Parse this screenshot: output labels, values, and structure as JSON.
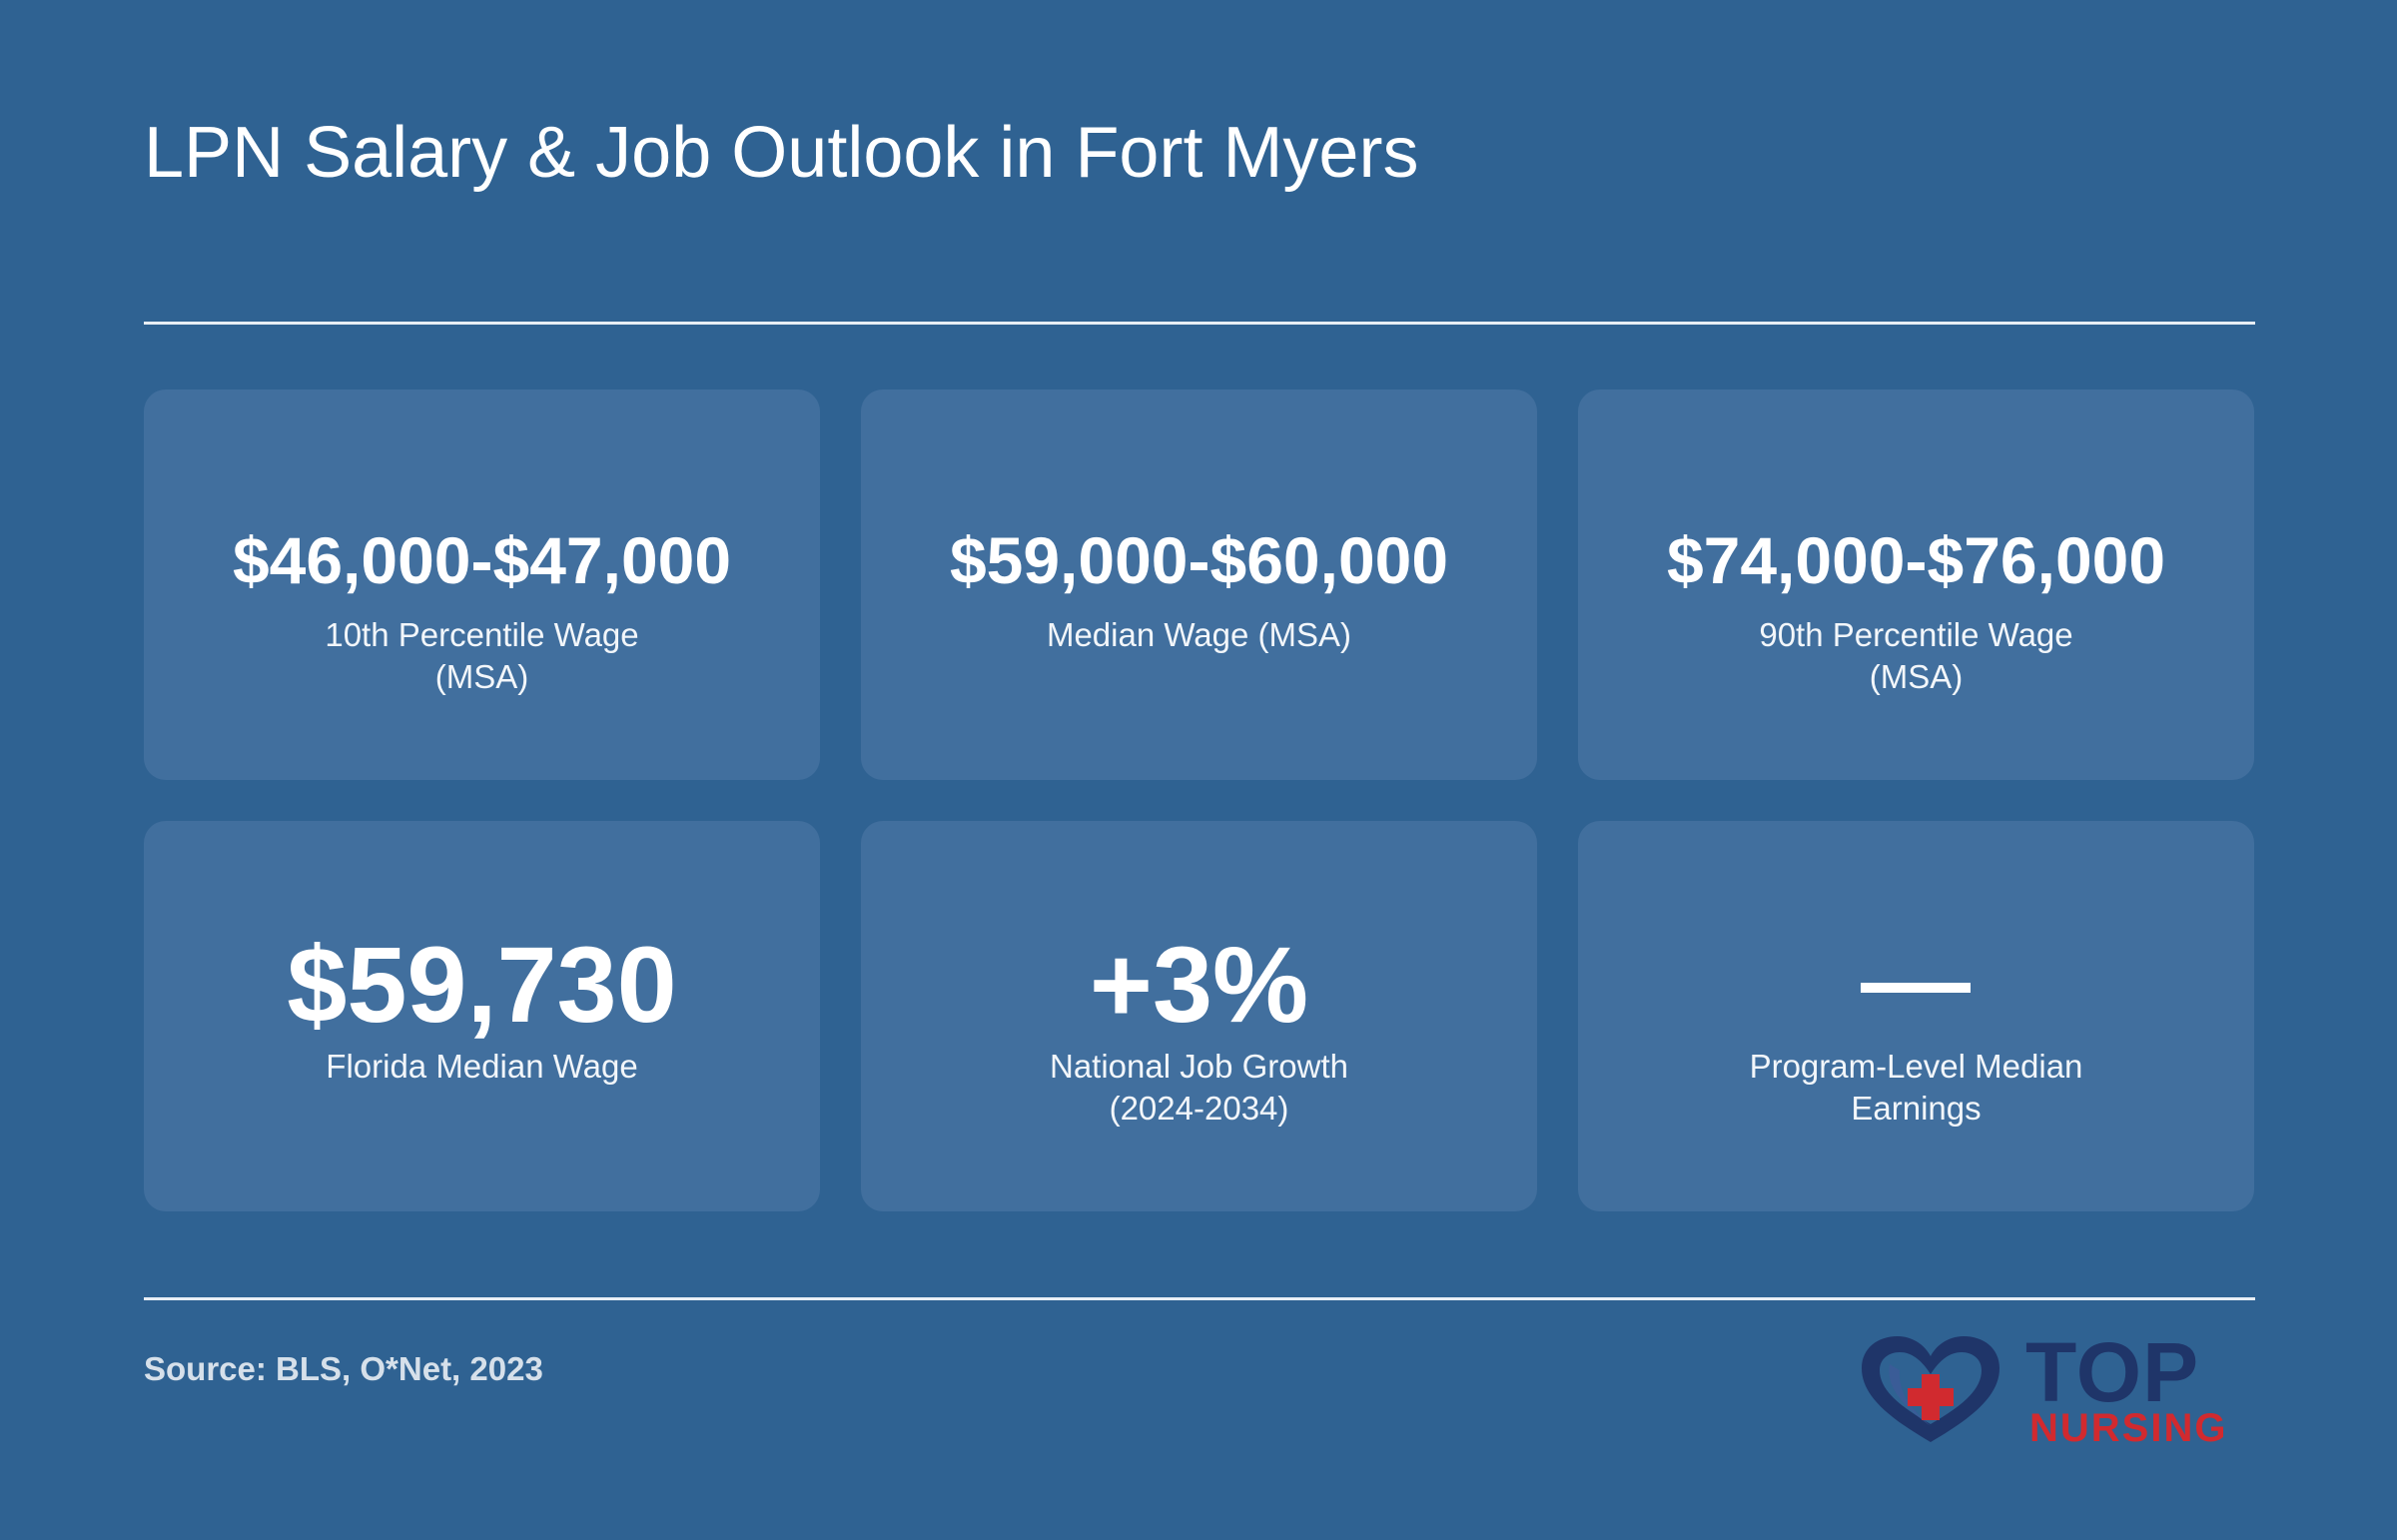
{
  "header": {
    "title": "LPN Salary & Job Outlook in Fort Myers"
  },
  "stats": [
    {
      "value": "$46,000-$47,000",
      "label": "10th Percentile Wage (MSA)"
    },
    {
      "value": "$59,000-$60,000",
      "label": "Median Wage (MSA)"
    },
    {
      "value": "$74,000-$76,000",
      "label": "90th Percentile Wage (MSA)"
    },
    {
      "value": "$59,730",
      "label": "Florida Median Wage"
    },
    {
      "value": "+3%",
      "label": "National Job Growth (2024-2034)"
    },
    {
      "value": "",
      "label": "Program-Level Median Earnings"
    }
  ],
  "footer": {
    "source": "Source: BLS, O*Net, 2023"
  },
  "logo": {
    "word_top": "TOP",
    "word_bottom": "NURSING",
    "icon": "heart-cross-icon"
  },
  "colors": {
    "background": "#2f6292",
    "card": "#416f9e",
    "logo_navy": "#1f3569",
    "logo_red": "#d12a2f"
  }
}
